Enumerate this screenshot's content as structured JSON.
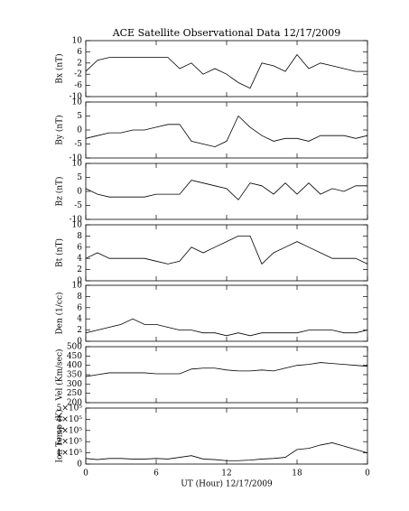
{
  "chart_data": [
    {
      "type": "line",
      "title": "ACE Satellite Observational Data   12/17/2009",
      "ylabel": "Bx (nT)",
      "x": [
        0,
        1,
        2,
        3,
        4,
        5,
        6,
        7,
        8,
        9,
        10,
        11,
        12,
        13,
        14,
        15,
        16,
        17,
        18,
        19,
        20,
        21,
        22,
        23,
        24
      ],
      "values": [
        -1,
        3,
        4,
        4,
        4,
        4,
        4,
        4,
        0,
        2,
        -2,
        0,
        -2,
        -5,
        -7,
        2,
        1,
        -1,
        5,
        0,
        2,
        1,
        0,
        -1,
        -1
      ],
      "xlim": [
        0,
        24
      ],
      "xticks": [
        0,
        6,
        12,
        18,
        {
          "value": 24,
          "label": "0"
        }
      ],
      "ylim": [
        -10,
        10
      ],
      "yticks": [
        -10,
        -6,
        -2,
        2,
        6,
        10
      ],
      "color": "#000000"
    },
    {
      "type": "line",
      "ylabel": "By (nT)",
      "x": [
        0,
        1,
        2,
        3,
        4,
        5,
        6,
        7,
        8,
        9,
        10,
        11,
        12,
        13,
        14,
        15,
        16,
        17,
        18,
        19,
        20,
        21,
        22,
        23,
        24
      ],
      "values": [
        -3,
        -2,
        -1,
        -1,
        0,
        0,
        1,
        2,
        2,
        -4,
        -5,
        -6,
        -4,
        5,
        1,
        -2,
        -4,
        -3,
        -3,
        -4,
        -2,
        -2,
        -2,
        -3,
        -2
      ],
      "xlim": [
        0,
        24
      ],
      "xticks": [
        0,
        6,
        12,
        18,
        {
          "value": 24,
          "label": "0"
        }
      ],
      "ylim": [
        -10,
        10
      ],
      "yticks": [
        -10,
        -5,
        0,
        5,
        10
      ],
      "color": "#000000"
    },
    {
      "type": "line",
      "ylabel": "Bz (nT)",
      "x": [
        0,
        1,
        2,
        3,
        4,
        5,
        6,
        7,
        8,
        9,
        10,
        11,
        12,
        13,
        14,
        15,
        16,
        17,
        18,
        19,
        20,
        21,
        22,
        23,
        24
      ],
      "values": [
        1,
        -1,
        -2,
        -2,
        -2,
        -2,
        -1,
        -1,
        -1,
        4,
        3,
        2,
        1,
        -3,
        3,
        2,
        -1,
        3,
        -1,
        3,
        -1,
        1,
        0,
        2,
        2
      ],
      "xlim": [
        0,
        24
      ],
      "xticks": [
        0,
        6,
        12,
        18,
        {
          "value": 24,
          "label": "0"
        }
      ],
      "ylim": [
        -10,
        10
      ],
      "yticks": [
        -10,
        -5,
        0,
        5,
        10
      ],
      "color": "#000000"
    },
    {
      "type": "line",
      "ylabel": "Bt (nT)",
      "x": [
        0,
        1,
        2,
        3,
        4,
        5,
        6,
        7,
        8,
        9,
        10,
        11,
        12,
        13,
        14,
        15,
        16,
        17,
        18,
        19,
        20,
        21,
        22,
        23,
        24
      ],
      "values": [
        4,
        5,
        4,
        4,
        4,
        4,
        3.5,
        3,
        3.5,
        6,
        5,
        6,
        7,
        8,
        8,
        3,
        5,
        6,
        7,
        6,
        5,
        4,
        4,
        4,
        3
      ],
      "xlim": [
        0,
        24
      ],
      "xticks": [
        0,
        6,
        12,
        18,
        {
          "value": 24,
          "label": "0"
        }
      ],
      "ylim": [
        0,
        10
      ],
      "yticks": [
        0,
        2,
        4,
        6,
        8,
        10
      ],
      "color": "#000000"
    },
    {
      "type": "line",
      "ylabel": "Den (1/cc)",
      "x": [
        0,
        1,
        2,
        3,
        4,
        5,
        6,
        7,
        8,
        9,
        10,
        11,
        12,
        13,
        14,
        15,
        16,
        17,
        18,
        19,
        20,
        21,
        22,
        23,
        24
      ],
      "values": [
        1.5,
        2,
        2.5,
        3,
        4,
        3,
        3,
        2.5,
        2,
        2,
        1.5,
        1.5,
        1,
        1.5,
        1,
        1.5,
        1.5,
        1.5,
        1.5,
        2,
        2,
        2,
        1.5,
        1.5,
        2
      ],
      "xlim": [
        0,
        24
      ],
      "xticks": [
        0,
        6,
        12,
        18,
        {
          "value": 24,
          "label": "0"
        }
      ],
      "ylim": [
        0,
        10
      ],
      "yticks": [
        0,
        2,
        4,
        6,
        8,
        10
      ],
      "color": "#000000"
    },
    {
      "type": "line",
      "ylabel": "Vel (Km/sec)",
      "x": [
        0,
        1,
        2,
        3,
        4,
        5,
        6,
        7,
        8,
        9,
        10,
        11,
        12,
        13,
        14,
        15,
        16,
        17,
        18,
        19,
        20,
        21,
        22,
        23,
        24
      ],
      "values": [
        340,
        350,
        360,
        360,
        360,
        360,
        355,
        355,
        355,
        380,
        385,
        385,
        375,
        370,
        370,
        375,
        370,
        385,
        400,
        405,
        415,
        410,
        405,
        400,
        395
      ],
      "xlim": [
        0,
        24
      ],
      "xticks": [
        0,
        6,
        12,
        18,
        {
          "value": 24,
          "label": "0"
        }
      ],
      "ylim": [
        200,
        500
      ],
      "yticks": [
        200,
        250,
        300,
        350,
        400,
        450,
        500
      ],
      "color": "#000000"
    },
    {
      "type": "line",
      "ylabel": "Ion Temp (K)",
      "xlabel": "UT (Hour)  12/17/2009",
      "x": [
        0,
        1,
        2,
        3,
        4,
        5,
        6,
        7,
        8,
        9,
        10,
        11,
        12,
        13,
        14,
        15,
        16,
        17,
        18,
        19,
        20,
        21,
        22,
        23,
        24
      ],
      "values": [
        50000,
        40000,
        50000,
        50000,
        45000,
        45000,
        50000,
        45000,
        60000,
        75000,
        45000,
        40000,
        30000,
        30000,
        35000,
        45000,
        50000,
        60000,
        130000,
        140000,
        170000,
        190000,
        160000,
        130000,
        100000
      ],
      "xlim": [
        0,
        24
      ],
      "xticks": [
        0,
        6,
        12,
        18,
        {
          "value": 24,
          "label": "0"
        }
      ],
      "ylim": [
        0,
        500000
      ],
      "yticks": [
        0,
        {
          "value": 100000,
          "label": "1×10⁵"
        },
        {
          "value": 200000,
          "label": "2×10⁵"
        },
        {
          "value": 300000,
          "label": "3×10⁵"
        },
        {
          "value": 400000,
          "label": "4×10⁵"
        },
        {
          "value": 500000,
          "label": "5×10⁵"
        }
      ],
      "color": "#000000"
    }
  ]
}
